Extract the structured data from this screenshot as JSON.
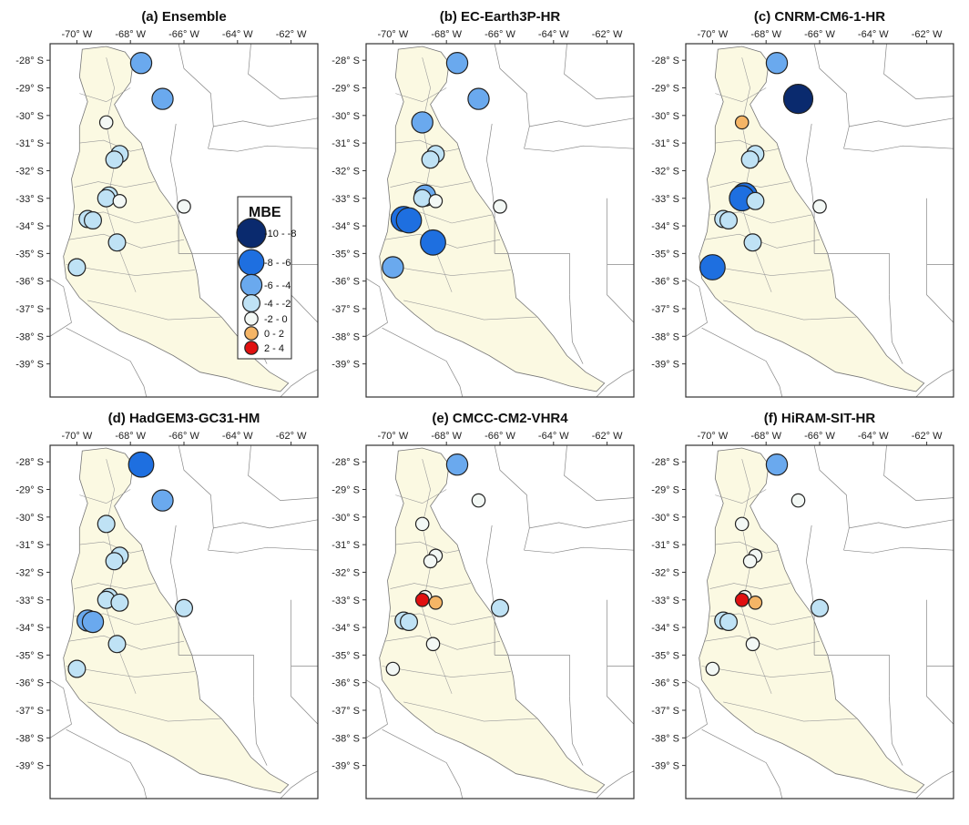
{
  "figure": {
    "lon_ticks": [
      -70,
      -68,
      -66,
      -64,
      -62
    ],
    "lat_ticks": [
      -28,
      -29,
      -30,
      -31,
      -32,
      -33,
      -34,
      -35,
      -36,
      -37,
      -38,
      -39
    ],
    "lon_tick_labels": [
      "-70° W",
      "-68° W",
      "-66° W",
      "-64° W",
      "-62° W"
    ],
    "lat_tick_labels": [
      "-28° S",
      "-29° S",
      "-30° S",
      "-31° S",
      "-32° S",
      "-33° S",
      "-34° S",
      "-35° S",
      "-36° S",
      "-37° S",
      "-38° S",
      "-39° S"
    ],
    "lon_range": [
      -71,
      -61
    ],
    "lat_range": [
      -27.4,
      -40.2
    ],
    "basin_fill": "#fbf9e2",
    "boundary_color": "#888888",
    "frame_color": "#333333"
  },
  "legend": {
    "title": "MBE",
    "classes": [
      {
        "label": "-10 - -8",
        "color": "#0a2a6e",
        "size": 5
      },
      {
        "label": "-8 - -6",
        "color": "#1e6fe0",
        "size": 4
      },
      {
        "label": "-6 - -4",
        "color": "#6aa9ee",
        "size": 3
      },
      {
        "label": "-4 - -2",
        "color": "#bfe2f5",
        "size": 2
      },
      {
        "label": "-2 - 0",
        "color": "#f3f8f5",
        "size": 1
      },
      {
        "label": "0 - 2",
        "color": "#f5b566",
        "size": 1
      },
      {
        "label": "2 - 4",
        "color": "#e01010",
        "size": 1
      }
    ]
  },
  "stations": [
    {
      "lon": -67.6,
      "lat": -28.1
    },
    {
      "lon": -66.8,
      "lat": -29.4
    },
    {
      "lon": -68.9,
      "lat": -30.25
    },
    {
      "lon": -68.4,
      "lat": -31.4
    },
    {
      "lon": -68.6,
      "lat": -31.6
    },
    {
      "lon": -68.8,
      "lat": -32.9
    },
    {
      "lon": -68.9,
      "lat": -33.0
    },
    {
      "lon": -68.4,
      "lat": -33.1
    },
    {
      "lon": -69.6,
      "lat": -33.75
    },
    {
      "lon": -69.4,
      "lat": -33.8
    },
    {
      "lon": -68.5,
      "lat": -34.6
    },
    {
      "lon": -70.0,
      "lat": -35.5
    },
    {
      "lon": -66.0,
      "lat": -33.3
    }
  ],
  "panels": [
    {
      "title": "(a) Ensemble",
      "mbe_class": [
        2,
        2,
        4,
        3,
        3,
        3,
        3,
        4,
        3,
        3,
        3,
        3,
        4
      ]
    },
    {
      "title": "(b) EC-Earth3P-HR",
      "mbe_class": [
        2,
        2,
        2,
        3,
        3,
        2,
        3,
        4,
        1,
        1,
        1,
        2,
        4
      ]
    },
    {
      "title": "(c) CNRM-CM6-1-HR",
      "mbe_class": [
        2,
        0,
        5,
        3,
        3,
        1,
        1,
        3,
        3,
        3,
        3,
        1,
        4
      ]
    },
    {
      "title": "(d) HadGEM3-GC31-HM",
      "mbe_class": [
        1,
        2,
        3,
        3,
        3,
        3,
        3,
        3,
        2,
        2,
        3,
        3,
        3
      ]
    },
    {
      "title": "(e) CMCC-CM2-VHR4",
      "mbe_class": [
        2,
        4,
        4,
        4,
        4,
        4,
        6,
        5,
        3,
        3,
        4,
        4,
        3
      ]
    },
    {
      "title": "(f) HiRAM-SIT-HR",
      "mbe_class": [
        2,
        4,
        4,
        4,
        4,
        4,
        6,
        5,
        3,
        3,
        4,
        4,
        3
      ]
    }
  ]
}
